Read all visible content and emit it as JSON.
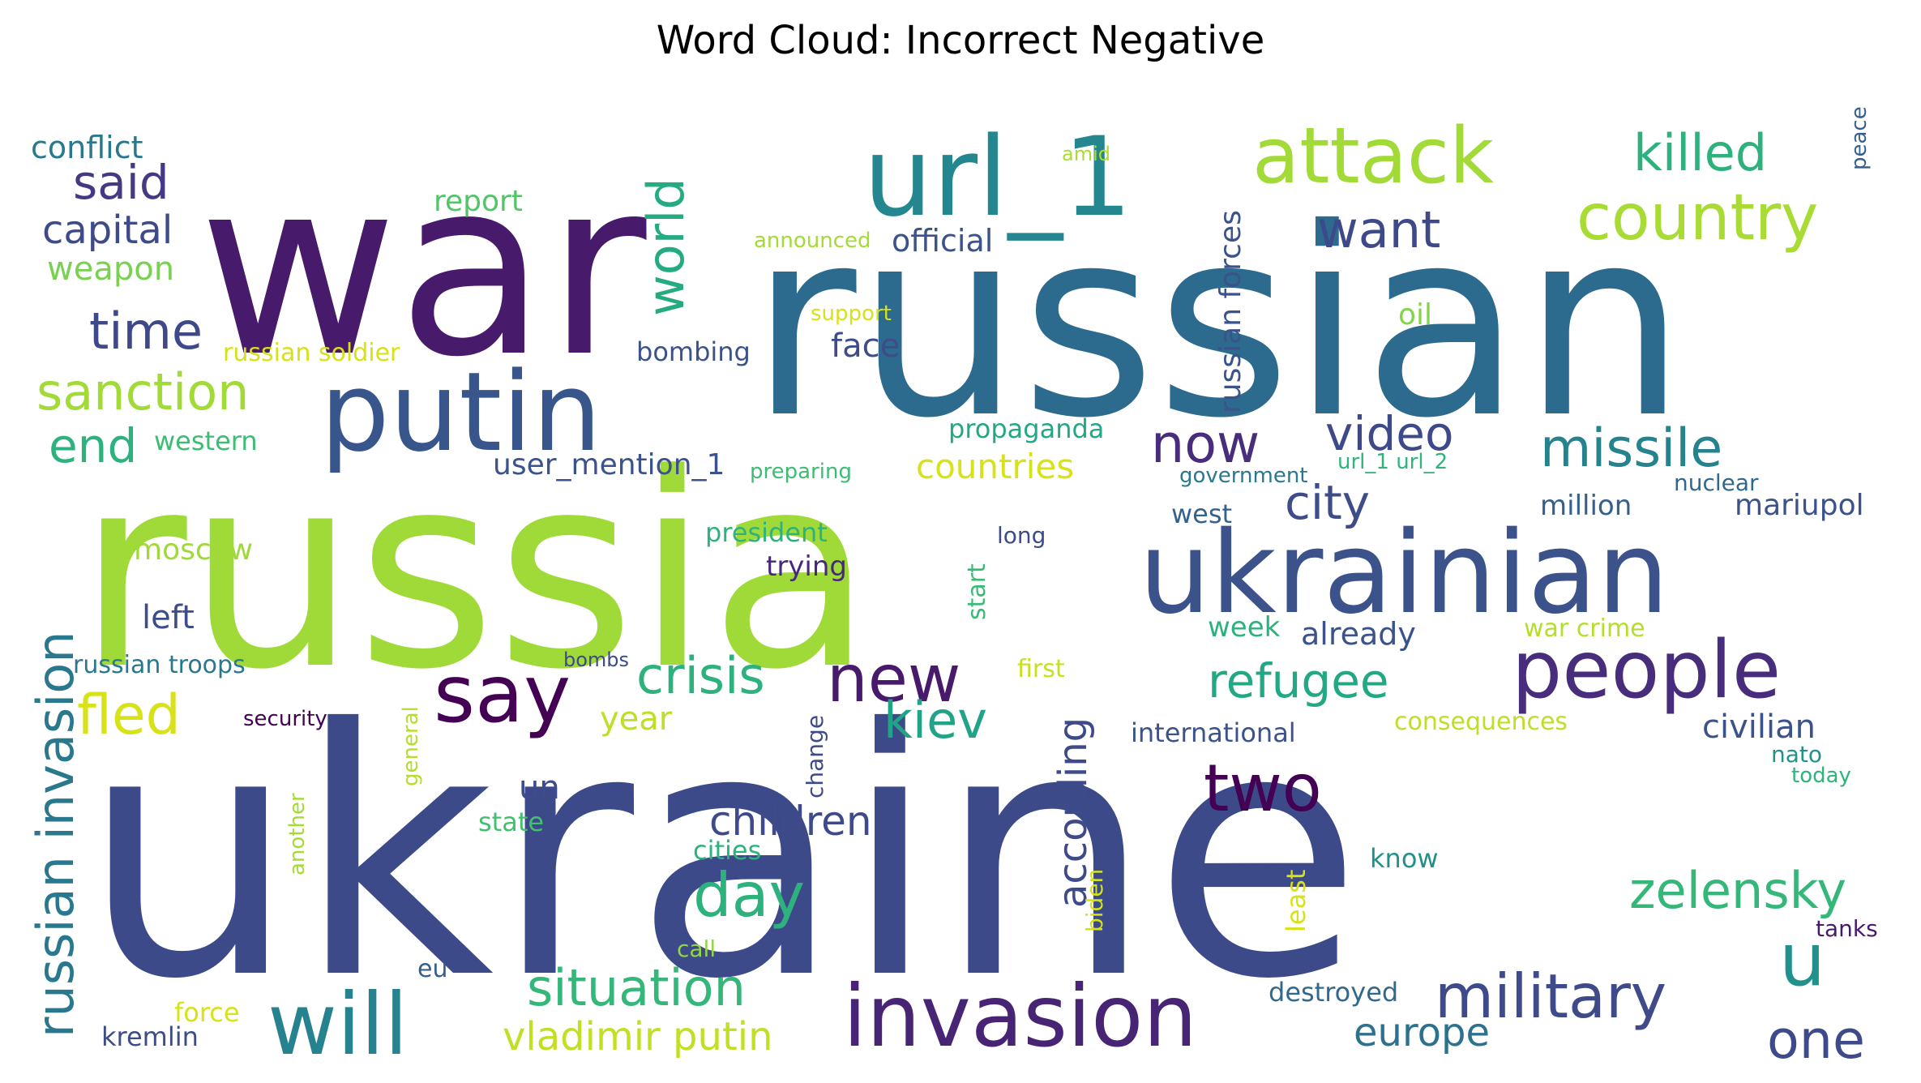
{
  "title": "Word Cloud: Incorrect Negative",
  "words": [
    {
      "text": "war",
      "color": "#481a6c"
    },
    {
      "text": "russian",
      "color": "#2c6b8e"
    },
    {
      "text": "russia",
      "color": "#a0da39"
    },
    {
      "text": "ukraine",
      "color": "#3d4a89"
    },
    {
      "text": "ukrainian",
      "color": "#3b528b"
    },
    {
      "text": "putin",
      "color": "#39568c"
    },
    {
      "text": "url_1",
      "color": "#24868e"
    },
    {
      "text": "attack",
      "color": "#a2da37"
    },
    {
      "text": "killed",
      "color": "#2db27d"
    },
    {
      "text": "country",
      "color": "#a8db34"
    },
    {
      "text": "want",
      "color": "#3e4989"
    },
    {
      "text": "world",
      "color": "#25ab82"
    },
    {
      "text": "said",
      "color": "#443983"
    },
    {
      "text": "capital",
      "color": "#3e4a89"
    },
    {
      "text": "conflict",
      "color": "#29788e"
    },
    {
      "text": "weapon",
      "color": "#7ad151"
    },
    {
      "text": "report",
      "color": "#52c569"
    },
    {
      "text": "amid",
      "color": "#addc30"
    },
    {
      "text": "announced",
      "color": "#a5db36"
    },
    {
      "text": "official",
      "color": "#3b528b"
    },
    {
      "text": "peace",
      "color": "#355f8d"
    },
    {
      "text": "time",
      "color": "#3e4989"
    },
    {
      "text": "sanction",
      "color": "#a2da37"
    },
    {
      "text": "end",
      "color": "#2db27d"
    },
    {
      "text": "western",
      "color": "#3dbc74"
    },
    {
      "text": "russian soldier",
      "color": "#d5e21a"
    },
    {
      "text": "support",
      "color": "#d8e219"
    },
    {
      "text": "bombing",
      "color": "#3b528b"
    },
    {
      "text": "face",
      "color": "#3e4c8a"
    },
    {
      "text": "oil",
      "color": "#84d44b"
    },
    {
      "text": "russian forces",
      "color": "#3b528b"
    },
    {
      "text": "now",
      "color": "#472d7b"
    },
    {
      "text": "video",
      "color": "#3e4989"
    },
    {
      "text": "missile",
      "color": "#25838e"
    },
    {
      "text": "propaganda",
      "color": "#22a884"
    },
    {
      "text": "countries",
      "color": "#d8e219"
    },
    {
      "text": "user_mention_1",
      "color": "#3b528b"
    },
    {
      "text": "preparing",
      "color": "#3fbc73"
    },
    {
      "text": "government",
      "color": "#2a788e"
    },
    {
      "text": "url_1 url_2",
      "color": "#2fb47c"
    },
    {
      "text": "nuclear",
      "color": "#31688e"
    },
    {
      "text": "city",
      "color": "#3e4c8a"
    },
    {
      "text": "west",
      "color": "#33638d"
    },
    {
      "text": "million",
      "color": "#355f8d"
    },
    {
      "text": "mariupol",
      "color": "#3b528b"
    },
    {
      "text": "russian invasion",
      "color": "#2a788e"
    },
    {
      "text": "moscow",
      "color": "#9fda3a"
    },
    {
      "text": "president",
      "color": "#2db27d"
    },
    {
      "text": "trying",
      "color": "#482878"
    },
    {
      "text": "long",
      "color": "#3e4a89"
    },
    {
      "text": "start",
      "color": "#3aba76"
    },
    {
      "text": "left",
      "color": "#3e4c8a"
    },
    {
      "text": "week",
      "color": "#2db27d"
    },
    {
      "text": "already",
      "color": "#3b528b"
    },
    {
      "text": "war crime",
      "color": "#b5de2b"
    },
    {
      "text": "say",
      "color": "#440154"
    },
    {
      "text": "crisis",
      "color": "#2db27d"
    },
    {
      "text": "new",
      "color": "#481a6c"
    },
    {
      "text": "refugee",
      "color": "#22a884"
    },
    {
      "text": "people",
      "color": "#472d7b"
    },
    {
      "text": "bombs",
      "color": "#3e4989"
    },
    {
      "text": "first",
      "color": "#c8e020"
    },
    {
      "text": "russian troops",
      "color": "#2a788e"
    },
    {
      "text": "fled",
      "color": "#d8e219"
    },
    {
      "text": "year",
      "color": "#bddf26"
    },
    {
      "text": "kiev",
      "color": "#20a386"
    },
    {
      "text": "according",
      "color": "#3e4a89"
    },
    {
      "text": "security",
      "color": "#440154"
    },
    {
      "text": "change",
      "color": "#3e4a89"
    },
    {
      "text": "international",
      "color": "#3b528b"
    },
    {
      "text": "consequences",
      "color": "#bddf26"
    },
    {
      "text": "civilian",
      "color": "#3b528b"
    },
    {
      "text": "u",
      "color": "#21918c"
    },
    {
      "text": "two",
      "color": "#440154"
    },
    {
      "text": "general",
      "color": "#b5de2b"
    },
    {
      "text": "un",
      "color": "#3e4c8a"
    },
    {
      "text": "nato",
      "color": "#21918c"
    },
    {
      "text": "today",
      "color": "#2fb47c"
    },
    {
      "text": "state",
      "color": "#44bf70"
    },
    {
      "text": "children",
      "color": "#3e4a89"
    },
    {
      "text": "another",
      "color": "#a5db36"
    },
    {
      "text": "cities",
      "color": "#2db27d"
    },
    {
      "text": "day",
      "color": "#2db27d"
    },
    {
      "text": "zelensky",
      "color": "#35b779"
    },
    {
      "text": "know",
      "color": "#21918c"
    },
    {
      "text": "least",
      "color": "#d8e219"
    },
    {
      "text": "biden",
      "color": "#d2e21b"
    },
    {
      "text": "tanks",
      "color": "#481a6c"
    },
    {
      "text": "call",
      "color": "#93d741"
    },
    {
      "text": "eu",
      "color": "#355f8d"
    },
    {
      "text": "situation",
      "color": "#35b779"
    },
    {
      "text": "military",
      "color": "#3e4a89"
    },
    {
      "text": "destroyed",
      "color": "#31688e"
    },
    {
      "text": "will",
      "color": "#26828e"
    },
    {
      "text": "invasion",
      "color": "#482475"
    },
    {
      "text": "force",
      "color": "#d8e219"
    },
    {
      "text": "vladimir putin",
      "color": "#c2df23"
    },
    {
      "text": "europe",
      "color": "#2c728e"
    },
    {
      "text": "one",
      "color": "#3e4a89"
    },
    {
      "text": "kremlin",
      "color": "#3e4c8a"
    }
  ]
}
